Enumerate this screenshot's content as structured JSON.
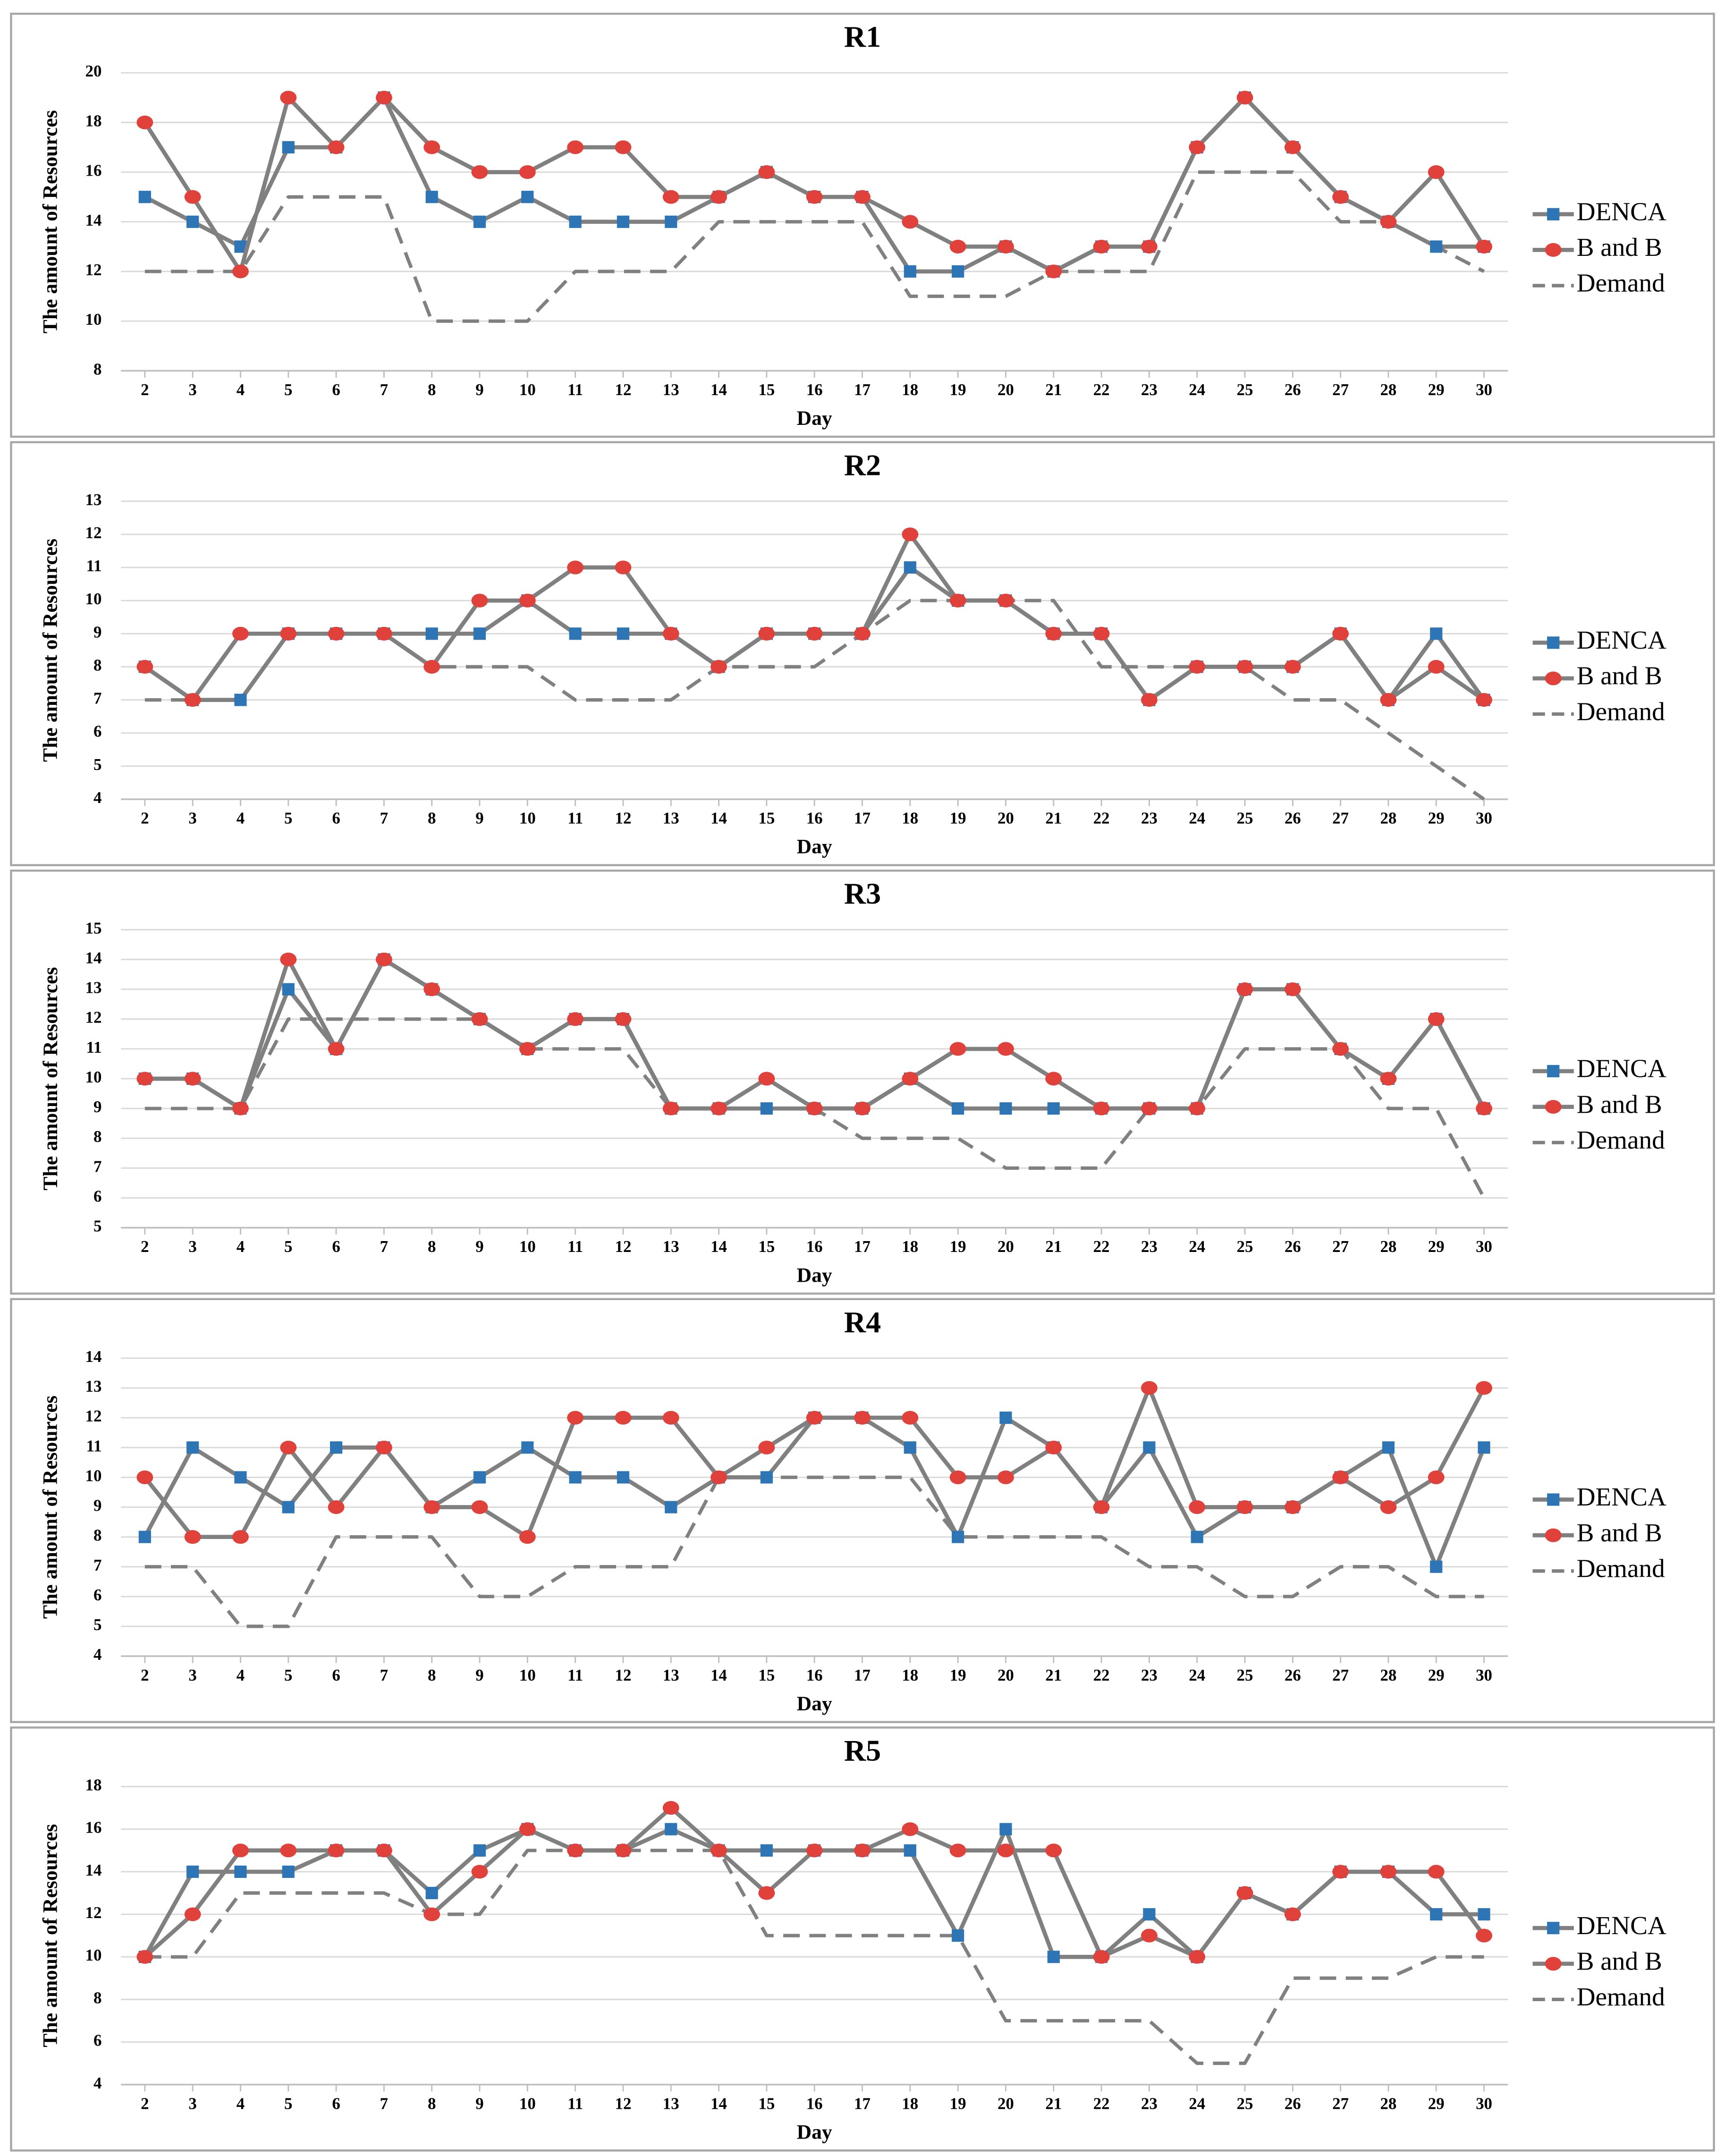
{
  "chart_data": [
    {
      "type": "line",
      "title": "R1",
      "xlabel": "Day",
      "ylabel": "The amount of Resources",
      "x": [
        2,
        3,
        4,
        5,
        6,
        7,
        8,
        9,
        10,
        11,
        12,
        13,
        14,
        15,
        16,
        17,
        18,
        19,
        20,
        21,
        22,
        23,
        24,
        25,
        26,
        27,
        28,
        29,
        30
      ],
      "xlim": [
        1.5,
        30.5
      ],
      "ylim": [
        8,
        20
      ],
      "yticks": [
        8,
        10,
        12,
        14,
        16,
        18,
        20
      ],
      "grid": true,
      "legend": "right",
      "line_color": "#808080",
      "series": [
        {
          "name": "DENCA",
          "color": "#2e75b6",
          "marker": "square",
          "values": [
            15,
            14,
            13,
            17,
            17,
            19,
            15,
            14,
            15,
            14,
            14,
            14,
            15,
            16,
            15,
            15,
            12,
            12,
            13,
            12,
            13,
            13,
            17,
            19,
            17,
            15,
            14,
            13,
            13
          ]
        },
        {
          "name": "B and B",
          "color": "#e0413a",
          "marker": "circle",
          "values": [
            18,
            15,
            12,
            19,
            17,
            19,
            17,
            16,
            16,
            17,
            17,
            15,
            15,
            16,
            15,
            15,
            14,
            13,
            13,
            12,
            13,
            13,
            17,
            19,
            17,
            15,
            14,
            16,
            13
          ]
        },
        {
          "name": "Demand",
          "color": "#808080",
          "dash": true,
          "values": [
            12,
            12,
            12,
            15,
            15,
            15,
            10,
            10,
            10,
            12,
            12,
            12,
            14,
            14,
            14,
            14,
            11,
            11,
            11,
            12,
            12,
            12,
            16,
            16,
            16,
            14,
            14,
            13,
            12
          ]
        }
      ]
    },
    {
      "type": "line",
      "title": "R2",
      "xlabel": "Day",
      "ylabel": "The amount of Resources",
      "x": [
        2,
        3,
        4,
        5,
        6,
        7,
        8,
        9,
        10,
        11,
        12,
        13,
        14,
        15,
        16,
        17,
        18,
        19,
        20,
        21,
        22,
        23,
        24,
        25,
        26,
        27,
        28,
        29,
        30
      ],
      "xlim": [
        1.5,
        30.5
      ],
      "ylim": [
        4,
        13
      ],
      "yticks": [
        4,
        5,
        6,
        7,
        8,
        9,
        10,
        11,
        12,
        13
      ],
      "grid": true,
      "legend": "right",
      "line_color": "#808080",
      "series": [
        {
          "name": "DENCA",
          "color": "#2e75b6",
          "marker": "square",
          "values": [
            8,
            7,
            7,
            9,
            9,
            9,
            9,
            9,
            10,
            9,
            9,
            9,
            8,
            9,
            9,
            9,
            11,
            10,
            10,
            9,
            9,
            7,
            8,
            8,
            8,
            9,
            7,
            9,
            7
          ]
        },
        {
          "name": "B and B",
          "color": "#e0413a",
          "marker": "circle",
          "values": [
            8,
            7,
            9,
            9,
            9,
            9,
            8,
            10,
            10,
            11,
            11,
            9,
            8,
            9,
            9,
            9,
            12,
            10,
            10,
            9,
            9,
            7,
            8,
            8,
            8,
            9,
            7,
            8,
            7
          ]
        },
        {
          "name": "Demand",
          "color": "#808080",
          "dash": true,
          "values": [
            7,
            7,
            7,
            9,
            9,
            9,
            8,
            8,
            8,
            7,
            7,
            7,
            8,
            8,
            8,
            9,
            10,
            10,
            10,
            10,
            8,
            8,
            8,
            8,
            7,
            7,
            6,
            5,
            4
          ]
        }
      ]
    },
    {
      "type": "line",
      "title": "R3",
      "xlabel": "Day",
      "ylabel": "The amount of Resources",
      "x": [
        2,
        3,
        4,
        5,
        6,
        7,
        8,
        9,
        10,
        11,
        12,
        13,
        14,
        15,
        16,
        17,
        18,
        19,
        20,
        21,
        22,
        23,
        24,
        25,
        26,
        27,
        28,
        29,
        30
      ],
      "xlim": [
        1.5,
        30.5
      ],
      "ylim": [
        5,
        15
      ],
      "yticks": [
        5,
        6,
        7,
        8,
        9,
        10,
        11,
        12,
        13,
        14,
        15
      ],
      "grid": true,
      "legend": "right",
      "line_color": "#808080",
      "series": [
        {
          "name": "DENCA",
          "color": "#2e75b6",
          "marker": "square",
          "values": [
            10,
            10,
            9,
            13,
            11,
            14,
            13,
            12,
            11,
            12,
            12,
            9,
            9,
            9,
            9,
            9,
            10,
            9,
            9,
            9,
            9,
            9,
            9,
            13,
            13,
            11,
            10,
            12,
            9
          ]
        },
        {
          "name": "B and B",
          "color": "#e0413a",
          "marker": "circle",
          "values": [
            10,
            10,
            9,
            14,
            11,
            14,
            13,
            12,
            11,
            12,
            12,
            9,
            9,
            10,
            9,
            9,
            10,
            11,
            11,
            10,
            9,
            9,
            9,
            13,
            13,
            11,
            10,
            12,
            9
          ]
        },
        {
          "name": "Demand",
          "color": "#808080",
          "dash": true,
          "values": [
            9,
            9,
            9,
            12,
            12,
            12,
            12,
            12,
            11,
            11,
            11,
            9,
            9,
            9,
            9,
            8,
            8,
            8,
            7,
            7,
            7,
            9,
            9,
            11,
            11,
            11,
            9,
            9,
            6
          ]
        }
      ]
    },
    {
      "type": "line",
      "title": "R4",
      "xlabel": "Day",
      "ylabel": "The amount of Resources",
      "x": [
        2,
        3,
        4,
        5,
        6,
        7,
        8,
        9,
        10,
        11,
        12,
        13,
        14,
        15,
        16,
        17,
        18,
        19,
        20,
        21,
        22,
        23,
        24,
        25,
        26,
        27,
        28,
        29,
        30
      ],
      "xlim": [
        1.5,
        30.5
      ],
      "ylim": [
        4,
        14
      ],
      "yticks": [
        4,
        5,
        6,
        7,
        8,
        9,
        10,
        11,
        12,
        13,
        14
      ],
      "grid": true,
      "legend": "right",
      "line_color": "#808080",
      "series": [
        {
          "name": "DENCA",
          "color": "#2e75b6",
          "marker": "square",
          "values": [
            8,
            11,
            10,
            9,
            11,
            11,
            9,
            10,
            11,
            10,
            10,
            9,
            10,
            10,
            12,
            12,
            11,
            8,
            12,
            11,
            9,
            11,
            8,
            9,
            9,
            10,
            11,
            7,
            11
          ]
        },
        {
          "name": "B and B",
          "color": "#e0413a",
          "marker": "circle",
          "values": [
            10,
            8,
            8,
            11,
            9,
            11,
            9,
            9,
            8,
            12,
            12,
            12,
            10,
            11,
            12,
            12,
            12,
            10,
            10,
            11,
            9,
            13,
            9,
            9,
            9,
            10,
            9,
            10,
            13
          ]
        },
        {
          "name": "Demand",
          "color": "#808080",
          "dash": true,
          "values": [
            7,
            7,
            5,
            5,
            8,
            8,
            8,
            6,
            6,
            7,
            7,
            7,
            10,
            10,
            10,
            10,
            10,
            8,
            8,
            8,
            8,
            7,
            7,
            6,
            6,
            7,
            7,
            6,
            6
          ]
        }
      ]
    },
    {
      "type": "line",
      "title": "R5",
      "xlabel": "Day",
      "ylabel": "The amount of Resources",
      "x": [
        2,
        3,
        4,
        5,
        6,
        7,
        8,
        9,
        10,
        11,
        12,
        13,
        14,
        15,
        16,
        17,
        18,
        19,
        20,
        21,
        22,
        23,
        24,
        25,
        26,
        27,
        28,
        29,
        30
      ],
      "xlim": [
        1.5,
        30.5
      ],
      "ylim": [
        4,
        18
      ],
      "yticks": [
        4,
        6,
        8,
        10,
        12,
        14,
        16,
        18
      ],
      "grid": true,
      "legend": "right",
      "line_color": "#808080",
      "series": [
        {
          "name": "DENCA",
          "color": "#2e75b6",
          "marker": "square",
          "values": [
            10,
            14,
            14,
            14,
            15,
            15,
            13,
            15,
            16,
            15,
            15,
            16,
            15,
            15,
            15,
            15,
            15,
            11,
            16,
            10,
            10,
            12,
            10,
            13,
            12,
            14,
            14,
            12,
            12
          ]
        },
        {
          "name": "B and B",
          "color": "#e0413a",
          "marker": "circle",
          "values": [
            10,
            12,
            15,
            15,
            15,
            15,
            12,
            14,
            16,
            15,
            15,
            17,
            15,
            13,
            15,
            15,
            16,
            15,
            15,
            15,
            10,
            11,
            10,
            13,
            12,
            14,
            14,
            14,
            11
          ]
        },
        {
          "name": "Demand",
          "color": "#808080",
          "dash": true,
          "values": [
            10,
            10,
            13,
            13,
            13,
            13,
            12,
            12,
            15,
            15,
            15,
            15,
            15,
            11,
            11,
            11,
            11,
            11,
            7,
            7,
            7,
            7,
            5,
            5,
            9,
            9,
            9,
            10,
            10
          ]
        }
      ]
    }
  ]
}
